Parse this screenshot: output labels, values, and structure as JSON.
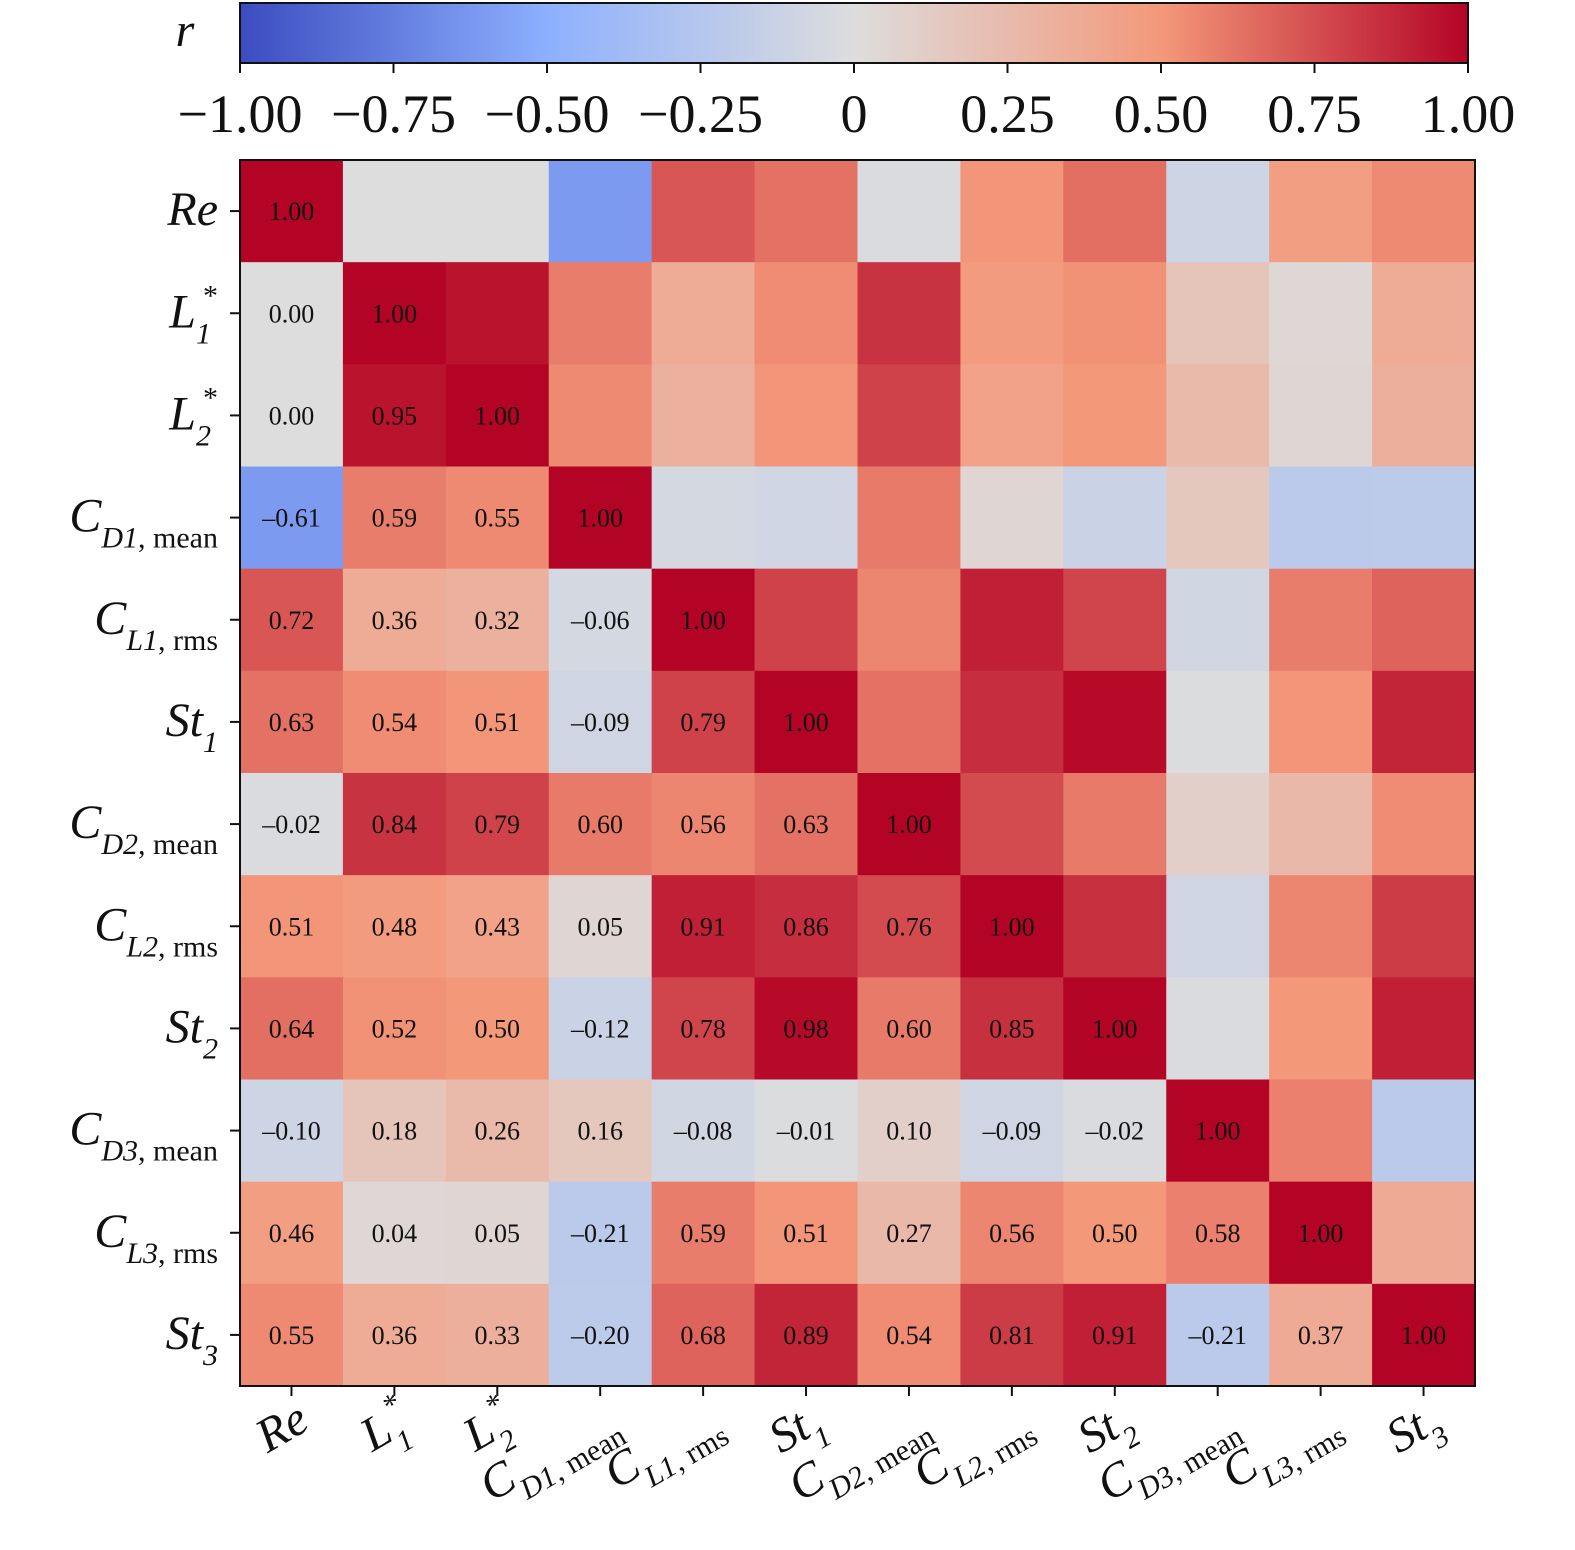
{
  "chart_data": {
    "type": "heatmap",
    "colorbar": {
      "label": "r",
      "vmin": -1.0,
      "vmax": 1.0,
      "ticks": [
        -1.0,
        -0.75,
        -0.5,
        -0.25,
        0,
        0.25,
        0.5,
        0.75,
        1.0
      ],
      "tick_labels": [
        "−1.00",
        "−0.75",
        "−0.50",
        "−0.25",
        "0",
        "0.25",
        "0.50",
        "0.75",
        "1.00"
      ],
      "placement": "top",
      "colormap": "coolwarm"
    },
    "variables": [
      {
        "base": "Re",
        "sub": "",
        "sup": "",
        "sub_upright": ""
      },
      {
        "base": "L",
        "sub": "1",
        "sup": "*",
        "sub_upright": ""
      },
      {
        "base": "L",
        "sub": "2",
        "sup": "*",
        "sub_upright": ""
      },
      {
        "base": "C",
        "sub": "D1",
        "sup": "",
        "sub_upright": ", mean"
      },
      {
        "base": "C",
        "sub": "L1",
        "sup": "",
        "sub_upright": ", rms"
      },
      {
        "base": "St",
        "sub": "1",
        "sup": "",
        "sub_upright": ""
      },
      {
        "base": "C",
        "sub": "D2",
        "sup": "",
        "sub_upright": ", mean"
      },
      {
        "base": "C",
        "sub": "L2",
        "sup": "",
        "sub_upright": ", rms"
      },
      {
        "base": "St",
        "sub": "2",
        "sup": "",
        "sub_upright": ""
      },
      {
        "base": "C",
        "sub": "D3",
        "sup": "",
        "sub_upright": ", mean"
      },
      {
        "base": "C",
        "sub": "L3",
        "sup": "",
        "sub_upright": ", rms"
      },
      {
        "base": "St",
        "sub": "3",
        "sup": "",
        "sub_upright": ""
      }
    ],
    "values": [
      [
        1.0,
        0.0,
        0.0,
        -0.61,
        0.72,
        0.63,
        -0.02,
        0.51,
        0.64,
        -0.1,
        0.46,
        0.55
      ],
      [
        0.0,
        1.0,
        0.95,
        0.59,
        0.36,
        0.54,
        0.84,
        0.48,
        0.52,
        0.18,
        0.04,
        0.36
      ],
      [
        0.0,
        0.95,
        1.0,
        0.55,
        0.32,
        0.51,
        0.79,
        0.43,
        0.5,
        0.26,
        0.05,
        0.33
      ],
      [
        -0.61,
        0.59,
        0.55,
        1.0,
        -0.06,
        -0.09,
        0.6,
        0.05,
        -0.12,
        0.16,
        -0.21,
        -0.2
      ],
      [
        0.72,
        0.36,
        0.32,
        -0.06,
        1.0,
        0.79,
        0.56,
        0.91,
        0.78,
        -0.08,
        0.59,
        0.68
      ],
      [
        0.63,
        0.54,
        0.51,
        -0.09,
        0.79,
        1.0,
        0.63,
        0.86,
        0.98,
        -0.01,
        0.51,
        0.89
      ],
      [
        -0.02,
        0.84,
        0.79,
        0.6,
        0.56,
        0.63,
        1.0,
        0.76,
        0.6,
        0.1,
        0.27,
        0.54
      ],
      [
        0.51,
        0.48,
        0.43,
        0.05,
        0.91,
        0.86,
        0.76,
        1.0,
        0.85,
        -0.09,
        0.56,
        0.81
      ],
      [
        0.64,
        0.52,
        0.5,
        -0.12,
        0.78,
        0.98,
        0.6,
        0.85,
        1.0,
        -0.02,
        0.5,
        0.91
      ],
      [
        -0.1,
        0.18,
        0.26,
        0.16,
        -0.08,
        -0.01,
        0.1,
        -0.09,
        -0.02,
        1.0,
        0.58,
        -0.21
      ],
      [
        0.46,
        0.04,
        0.05,
        -0.21,
        0.59,
        0.51,
        0.27,
        0.56,
        0.5,
        0.58,
        1.0,
        0.37
      ],
      [
        0.55,
        0.36,
        0.33,
        -0.2,
        0.68,
        0.89,
        0.54,
        0.81,
        0.91,
        -0.21,
        0.37,
        1.0
      ]
    ],
    "annotated": "lower-triangle-and-diagonal"
  }
}
